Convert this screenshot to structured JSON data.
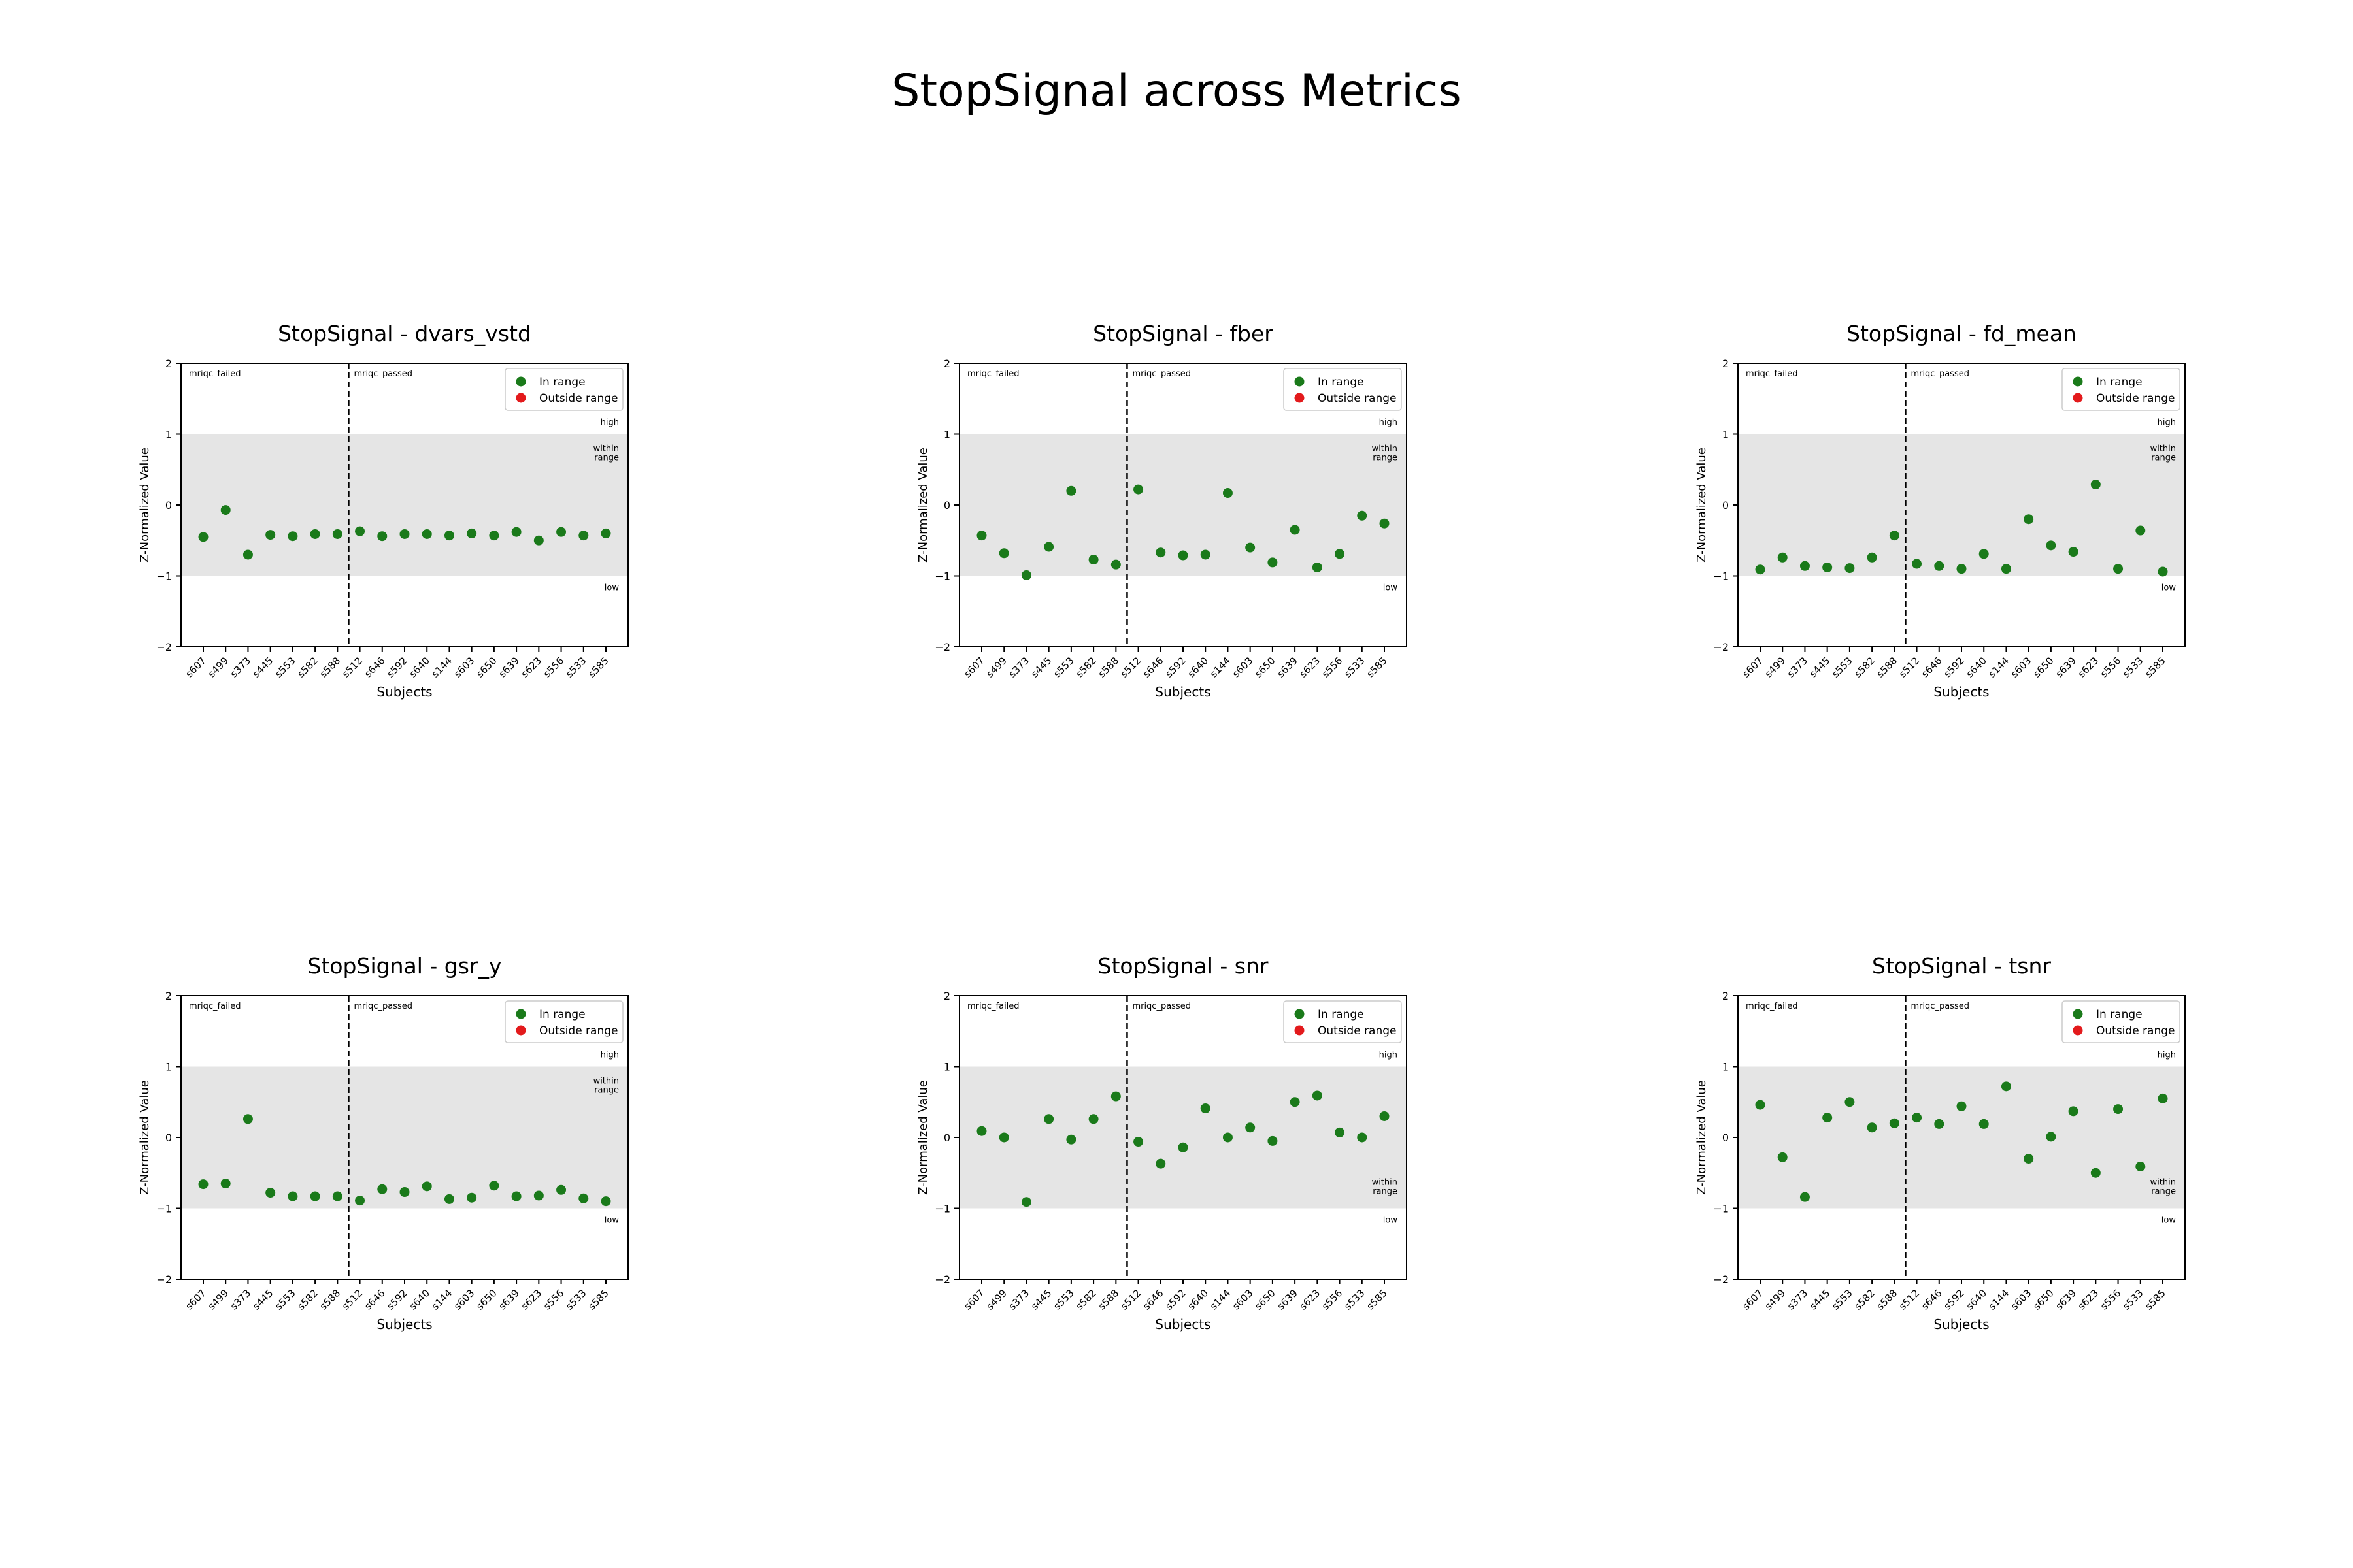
{
  "figure": {
    "title": "StopSignal across Metrics"
  },
  "subjects": [
    "s607",
    "s499",
    "s373",
    "s445",
    "s553",
    "s582",
    "s588",
    "s512",
    "s646",
    "s592",
    "s640",
    "s144",
    "s603",
    "s650",
    "s639",
    "s623",
    "s556",
    "s533",
    "s585"
  ],
  "labels": {
    "failed": "mriqc_failed",
    "passed": "mriqc_passed",
    "high": "high",
    "within": "within range",
    "low": "low"
  },
  "legend": {
    "in_range": "In range",
    "outside_range": "Outside range"
  },
  "colors": {
    "in_range": "#1a7a1a",
    "outside_range": "#e31a1c",
    "band": "#e5e5e5"
  },
  "chart_data": [
    {
      "type": "scatter",
      "title": "StopSignal - dvars_vstd",
      "xlabel": "Subjects",
      "ylabel": "Z-Normalized Value",
      "ylim": [
        -2,
        2
      ],
      "yticks": [
        -2,
        -1,
        0,
        1,
        2
      ],
      "shaded_range": [
        -1,
        1
      ],
      "divider_after_index": 6,
      "within_label_position": "top-right",
      "legend": "top-right",
      "values": [
        -0.45,
        -0.07,
        -0.7,
        -0.42,
        -0.44,
        -0.41,
        -0.41,
        -0.37,
        -0.44,
        -0.41,
        -0.41,
        -0.43,
        -0.4,
        -0.43,
        -0.38,
        -0.5,
        -0.38,
        -0.43,
        -0.4
      ]
    },
    {
      "type": "scatter",
      "title": "StopSignal - fber",
      "xlabel": "Subjects",
      "ylabel": "Z-Normalized Value",
      "ylim": [
        -2,
        2
      ],
      "yticks": [
        -2,
        -1,
        0,
        1,
        2
      ],
      "shaded_range": [
        -1,
        1
      ],
      "divider_after_index": 6,
      "within_label_position": "top-right",
      "legend": "top-right",
      "values": [
        -0.43,
        -0.68,
        -0.99,
        -0.59,
        0.2,
        -0.77,
        -0.84,
        0.22,
        -0.67,
        -0.71,
        -0.7,
        0.17,
        -0.6,
        -0.81,
        -0.35,
        -0.88,
        -0.69,
        -0.15,
        -0.26
      ]
    },
    {
      "type": "scatter",
      "title": "StopSignal - fd_mean",
      "xlabel": "Subjects",
      "ylabel": "Z-Normalized Value",
      "ylim": [
        -2,
        2
      ],
      "yticks": [
        -2,
        -1,
        0,
        1,
        2
      ],
      "shaded_range": [
        -1,
        1
      ],
      "divider_after_index": 6,
      "within_label_position": "top-right",
      "legend": "top-right",
      "values": [
        -0.91,
        -0.74,
        -0.86,
        -0.88,
        -0.89,
        -0.74,
        -0.43,
        -0.83,
        -0.86,
        -0.9,
        -0.69,
        -0.9,
        -0.2,
        -0.57,
        -0.66,
        0.29,
        -0.9,
        -0.36,
        -0.94
      ]
    },
    {
      "type": "scatter",
      "title": "StopSignal - gsr_y",
      "xlabel": "Subjects",
      "ylabel": "Z-Normalized Value",
      "ylim": [
        -2,
        2
      ],
      "yticks": [
        -2,
        -1,
        0,
        1,
        2
      ],
      "shaded_range": [
        -1,
        1
      ],
      "divider_after_index": 6,
      "within_label_position": "top-right",
      "legend": "top-right",
      "values": [
        -0.66,
        -0.65,
        0.26,
        -0.78,
        -0.83,
        -0.83,
        -0.83,
        -0.89,
        -0.73,
        -0.77,
        -0.69,
        -0.87,
        -0.85,
        -0.68,
        -0.83,
        -0.82,
        -0.74,
        -0.86,
        -0.9
      ]
    },
    {
      "type": "scatter",
      "title": "StopSignal - snr",
      "xlabel": "Subjects",
      "ylabel": "Z-Normalized Value",
      "ylim": [
        -2,
        2
      ],
      "yticks": [
        -2,
        -1,
        0,
        1,
        2
      ],
      "shaded_range": [
        -1,
        1
      ],
      "divider_after_index": 6,
      "within_label_position": "bottom-right",
      "legend": "top-right",
      "values": [
        0.09,
        0.0,
        -0.91,
        0.26,
        -0.03,
        0.26,
        0.58,
        -0.06,
        -0.37,
        -0.14,
        0.41,
        0.0,
        0.14,
        -0.05,
        0.5,
        0.59,
        0.07,
        0.0,
        0.3
      ]
    },
    {
      "type": "scatter",
      "title": "StopSignal - tsnr",
      "xlabel": "Subjects",
      "ylabel": "Z-Normalized Value",
      "ylim": [
        -2,
        2
      ],
      "yticks": [
        -2,
        -1,
        0,
        1,
        2
      ],
      "shaded_range": [
        -1,
        1
      ],
      "divider_after_index": 6,
      "within_label_position": "bottom-right",
      "legend": "top-right",
      "values": [
        0.46,
        -0.28,
        -0.84,
        0.28,
        0.5,
        0.14,
        0.2,
        0.28,
        0.19,
        0.44,
        0.19,
        0.72,
        -0.3,
        0.01,
        0.37,
        -0.5,
        0.4,
        -0.41,
        0.55
      ]
    }
  ]
}
